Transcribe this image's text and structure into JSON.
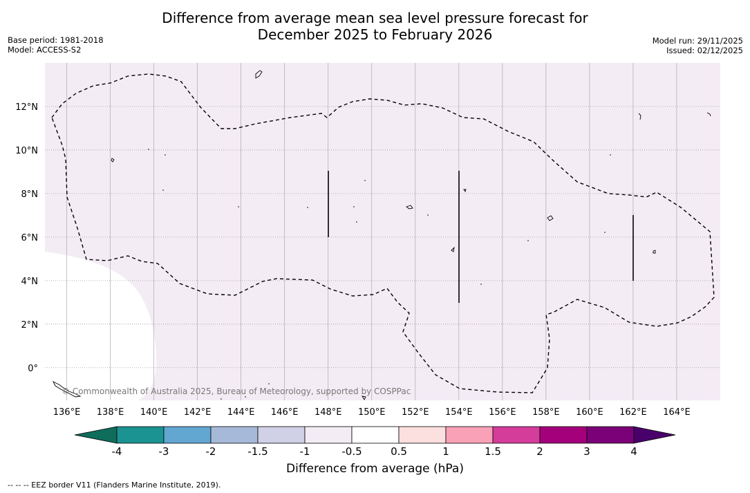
{
  "title": {
    "line1": "Difference from average mean sea level pressure forecast for",
    "line2": "December 2025 to February 2026"
  },
  "meta": {
    "base_period": "Base period: 1981-2018",
    "model": "Model: ACCESS-S2",
    "model_run": "Model run: 29/11/2025",
    "issued": "Issued: 02/12/2025"
  },
  "map": {
    "lon_min": 135.0,
    "lon_max": 166.0,
    "lat_min": -1.5,
    "lat_max": 14.0,
    "lon_ticks": [
      136,
      138,
      140,
      142,
      144,
      146,
      148,
      150,
      152,
      154,
      156,
      158,
      160,
      162,
      164
    ],
    "lon_tick_labels": [
      "136°E",
      "138°E",
      "140°E",
      "142°E",
      "144°E",
      "146°E",
      "148°E",
      "150°E",
      "152°E",
      "154°E",
      "156°E",
      "158°E",
      "160°E",
      "162°E",
      "164°E"
    ],
    "lat_ticks": [
      0,
      2,
      4,
      6,
      8,
      10,
      12
    ],
    "lat_tick_labels": [
      "0°",
      "2°N",
      "4°N",
      "6°N",
      "8°N",
      "10°N",
      "12°N"
    ],
    "background_color": "#f4ecf5",
    "copyright": "© Commonwealth of Australia 2025, Bureau of Meteorology, supported by COSPPac"
  },
  "colorbar": {
    "title": "Difference from average (hPa)",
    "tick_labels": [
      "-4",
      "-3",
      "-2",
      "-1.5",
      "-1",
      "-0.5",
      "0.5",
      "1",
      "1.5",
      "2",
      "3",
      "4"
    ],
    "colors": [
      "#1a9392",
      "#62a6d2",
      "#a7b9d9",
      "#d0d1e6",
      "#f4ecf5",
      "#ffffff",
      "#fcdfdf",
      "#f9a1b7",
      "#d53d9b",
      "#a5007b",
      "#7a0177"
    ],
    "under_color": "#0e6d5b",
    "over_color": "#49006a"
  },
  "footer": {
    "legend_text": "--  --  -- EEZ border V11 (Flanders Marine Institute, 2019)."
  }
}
